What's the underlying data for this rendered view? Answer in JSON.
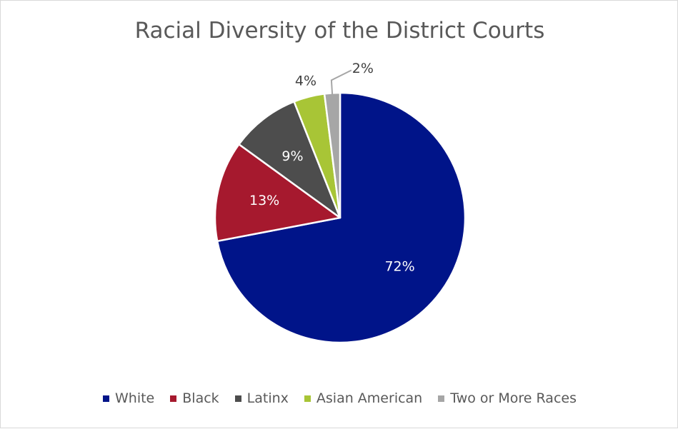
{
  "chart_data": {
    "type": "pie",
    "title": "Racial Diversity of the District Courts",
    "categories": [
      "White",
      "Black",
      "Latinx",
      "Asian American",
      "Two or More Races"
    ],
    "values": [
      72,
      13,
      9,
      4,
      2
    ],
    "data_labels": [
      "72%",
      "13%",
      "9%",
      "4%",
      "2%"
    ],
    "colors": [
      "#001489",
      "#A6192E",
      "#4D4D4D",
      "#A8C536",
      "#A6A6A6"
    ],
    "label_colors": [
      "#ffffff",
      "#ffffff",
      "#ffffff",
      "#404040",
      "#404040"
    ],
    "start_angle_deg": 0,
    "direction": "clockwise",
    "legend_position": "bottom"
  }
}
